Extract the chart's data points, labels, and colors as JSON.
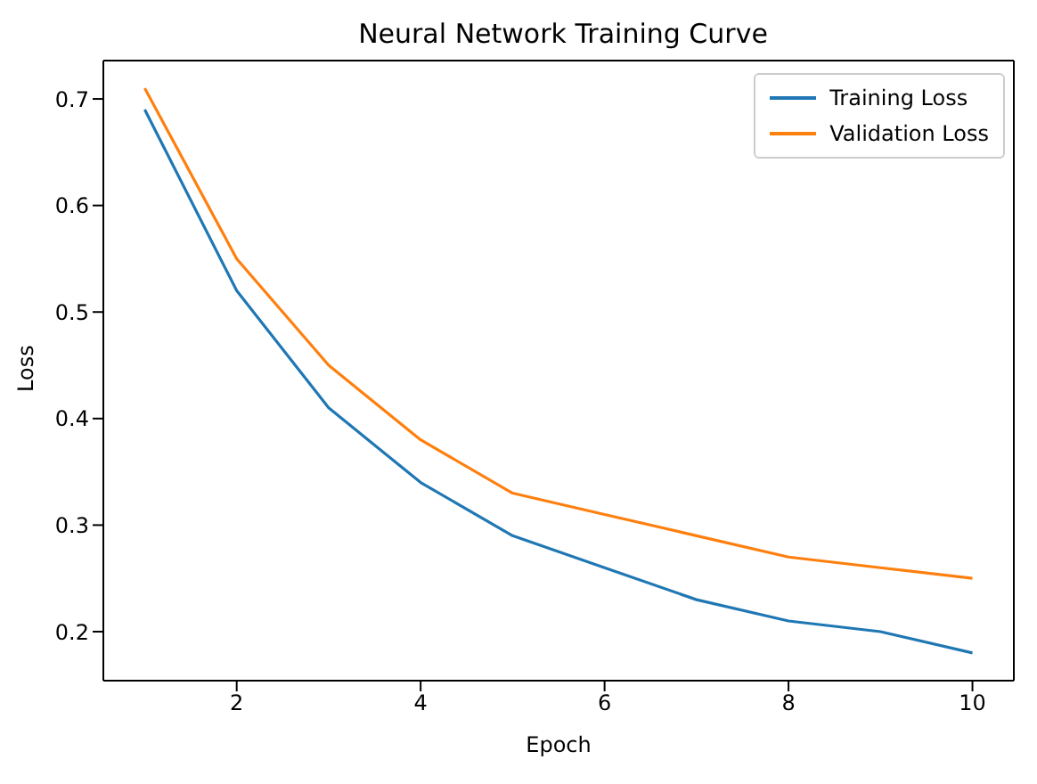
{
  "chart_data": {
    "type": "line",
    "title": "Neural Network Training Curve",
    "xlabel": "Epoch",
    "ylabel": "Loss",
    "x": [
      1,
      2,
      3,
      4,
      5,
      6,
      7,
      8,
      9,
      10
    ],
    "series": [
      {
        "name": "Training Loss",
        "color": "#1f77b4",
        "values": [
          0.69,
          0.52,
          0.41,
          0.34,
          0.29,
          0.26,
          0.23,
          0.21,
          0.2,
          0.18
        ]
      },
      {
        "name": "Validation Loss",
        "color": "#ff7f0e",
        "values": [
          0.71,
          0.55,
          0.45,
          0.38,
          0.33,
          0.31,
          0.29,
          0.27,
          0.26,
          0.25
        ]
      }
    ],
    "xlim": [
      0.55,
      10.45
    ],
    "xticks": [
      2,
      4,
      6,
      8,
      10
    ],
    "ylim": [
      0.154,
      0.736
    ],
    "yticks": [
      0.2,
      0.3,
      0.4,
      0.5,
      0.6,
      0.7
    ],
    "legend": "top right",
    "grid": false,
    "marker": "none",
    "line_style": "solid"
  }
}
